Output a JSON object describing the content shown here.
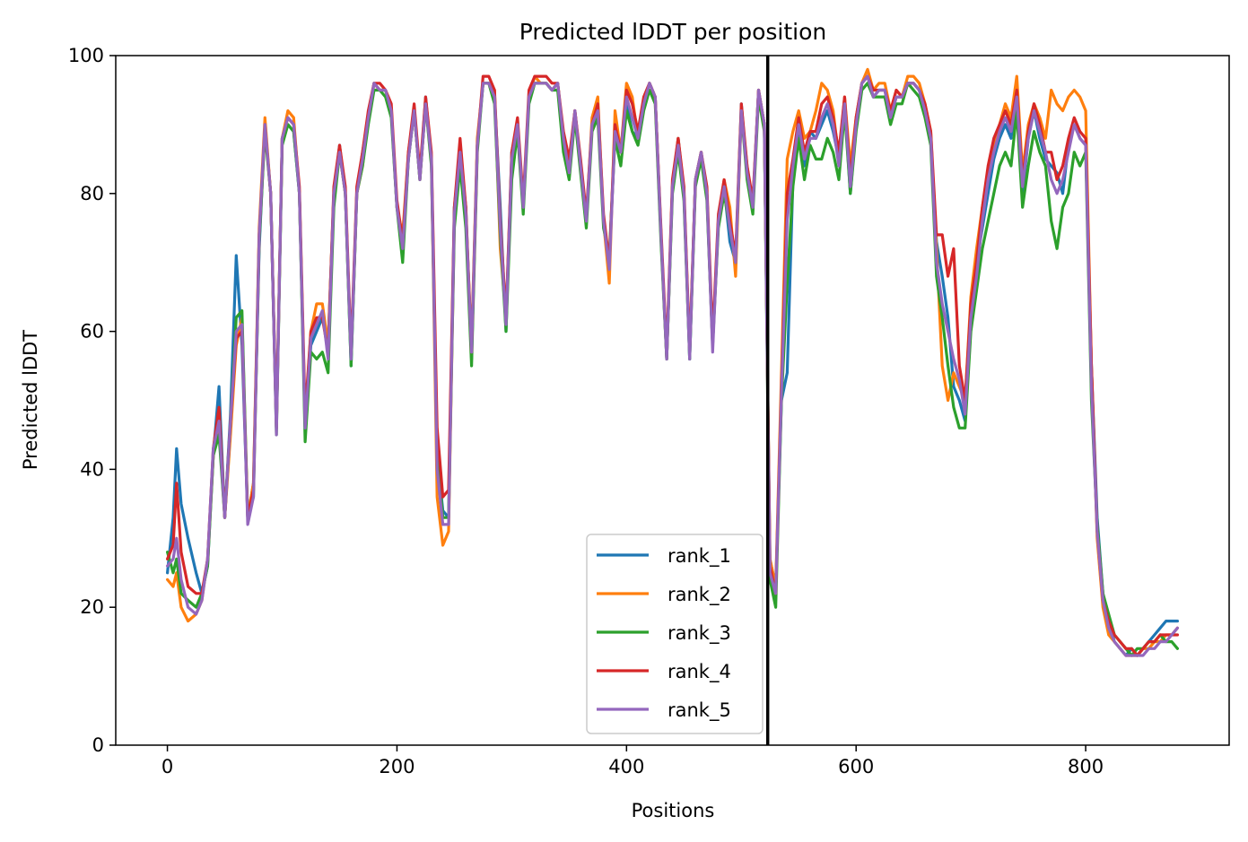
{
  "chart_data": {
    "type": "line",
    "title": "Predicted lDDT per position",
    "xlabel": "Positions",
    "ylabel": "Predicted lDDT",
    "xlim": [
      -45,
      925
    ],
    "ylim": [
      0,
      100
    ],
    "x_ticks": [
      0,
      200,
      400,
      600,
      800
    ],
    "y_ticks": [
      0,
      20,
      40,
      60,
      80,
      100
    ],
    "grid": false,
    "legend_position": "lower center",
    "vline": {
      "x": 523,
      "color": "#000000"
    },
    "x": [
      0,
      5,
      8,
      12,
      18,
      25,
      30,
      35,
      40,
      45,
      50,
      55,
      60,
      65,
      70,
      75,
      80,
      85,
      90,
      95,
      100,
      105,
      110,
      115,
      120,
      125,
      130,
      135,
      140,
      145,
      150,
      155,
      160,
      165,
      170,
      175,
      180,
      185,
      190,
      195,
      200,
      205,
      210,
      215,
      220,
      225,
      230,
      235,
      240,
      245,
      250,
      255,
      260,
      265,
      270,
      275,
      280,
      285,
      290,
      295,
      300,
      305,
      310,
      315,
      320,
      325,
      330,
      335,
      340,
      345,
      350,
      355,
      360,
      365,
      370,
      375,
      380,
      385,
      390,
      395,
      400,
      405,
      410,
      415,
      420,
      425,
      430,
      435,
      440,
      445,
      450,
      455,
      460,
      465,
      470,
      475,
      480,
      485,
      490,
      495,
      500,
      505,
      510,
      515,
      520,
      525,
      530,
      535,
      540,
      545,
      550,
      555,
      560,
      565,
      570,
      575,
      580,
      585,
      590,
      595,
      600,
      605,
      610,
      615,
      620,
      625,
      630,
      635,
      640,
      645,
      650,
      655,
      660,
      665,
      670,
      675,
      680,
      685,
      690,
      695,
      700,
      705,
      710,
      715,
      720,
      725,
      730,
      735,
      740,
      745,
      750,
      755,
      760,
      765,
      770,
      775,
      780,
      785,
      790,
      795,
      800,
      805,
      810,
      815,
      820,
      825,
      830,
      835,
      840,
      845,
      850,
      855,
      860,
      865,
      870,
      875,
      880
    ],
    "series": [
      {
        "name": "rank_1",
        "color": "#1f77b4",
        "values": [
          25,
          33,
          43,
          35,
          30,
          25,
          22,
          26,
          42,
          52,
          33,
          48,
          71,
          58,
          33,
          38,
          72,
          90,
          80,
          46,
          88,
          90,
          89,
          80,
          46,
          58,
          60,
          62,
          58,
          80,
          87,
          80,
          55,
          80,
          86,
          91,
          96,
          95,
          95,
          92,
          78,
          72,
          85,
          92,
          82,
          94,
          85,
          42,
          34,
          33,
          78,
          86,
          78,
          56,
          87,
          96,
          96,
          94,
          78,
          60,
          86,
          90,
          78,
          94,
          96,
          96,
          96,
          95,
          96,
          88,
          83,
          92,
          84,
          76,
          90,
          92,
          76,
          70,
          89,
          86,
          93,
          89,
          88,
          93,
          96,
          94,
          74,
          56,
          81,
          88,
          80,
          56,
          82,
          86,
          80,
          58,
          76,
          81,
          73,
          70,
          93,
          83,
          78,
          95,
          90,
          27,
          23,
          50,
          54,
          82,
          90,
          84,
          89,
          88,
          90,
          92,
          89,
          85,
          93,
          80,
          90,
          96,
          97,
          94,
          95,
          95,
          91,
          94,
          94,
          96,
          96,
          95,
          92,
          88,
          73,
          68,
          62,
          52,
          50,
          47,
          62,
          70,
          75,
          80,
          85,
          88,
          90,
          88,
          94,
          80,
          88,
          92,
          88,
          85,
          84,
          83,
          80,
          87,
          90,
          88,
          87,
          55,
          33,
          22,
          18,
          15,
          14,
          13,
          14,
          13,
          14,
          15,
          16,
          17,
          18,
          18,
          18
        ]
      },
      {
        "name": "rank_2",
        "color": "#ff7f0e",
        "values": [
          24,
          23,
          25,
          20,
          18,
          19,
          21,
          27,
          42,
          46,
          33,
          45,
          58,
          62,
          33,
          38,
          75,
          91,
          80,
          46,
          88,
          92,
          91,
          80,
          47,
          60,
          64,
          64,
          58,
          80,
          86,
          80,
          56,
          80,
          84,
          91,
          96,
          95,
          95,
          92,
          78,
          74,
          86,
          92,
          82,
          93,
          85,
          36,
          29,
          31,
          76,
          86,
          77,
          58,
          88,
          96,
          96,
          95,
          72,
          62,
          85,
          90,
          78,
          94,
          97,
          96,
          96,
          95,
          96,
          88,
          84,
          92,
          84,
          76,
          91,
          94,
          76,
          67,
          92,
          86,
          96,
          94,
          88,
          93,
          96,
          94,
          74,
          56,
          81,
          88,
          80,
          57,
          82,
          86,
          80,
          58,
          76,
          82,
          78,
          68,
          92,
          84,
          78,
          95,
          90,
          27,
          23,
          54,
          85,
          89,
          92,
          88,
          89,
          92,
          96,
          95,
          92,
          85,
          94,
          84,
          91,
          96,
          98,
          95,
          96,
          96,
          92,
          95,
          94,
          97,
          97,
          96,
          93,
          89,
          72,
          55,
          50,
          54,
          52,
          50,
          65,
          72,
          78,
          83,
          87,
          90,
          93,
          91,
          97,
          83,
          90,
          93,
          91,
          88,
          95,
          93,
          92,
          94,
          95,
          94,
          92,
          55,
          30,
          20,
          16,
          15,
          14,
          13,
          13,
          13,
          14,
          14,
          15,
          15,
          16,
          16,
          17
        ]
      },
      {
        "name": "rank_3",
        "color": "#2ca02c",
        "values": [
          28,
          25,
          27,
          22,
          21,
          20,
          22,
          26,
          42,
          45,
          33,
          47,
          62,
          63,
          33,
          36,
          73,
          89,
          80,
          45,
          87,
          90,
          89,
          80,
          44,
          57,
          56,
          57,
          54,
          78,
          86,
          80,
          55,
          80,
          84,
          90,
          95,
          95,
          94,
          91,
          78,
          70,
          85,
          92,
          82,
          93,
          84,
          42,
          33,
          33,
          75,
          84,
          75,
          55,
          86,
          96,
          96,
          93,
          74,
          60,
          82,
          89,
          77,
          93,
          96,
          96,
          96,
          95,
          95,
          86,
          82,
          91,
          83,
          75,
          89,
          91,
          75,
          71,
          88,
          84,
          92,
          89,
          87,
          92,
          95,
          93,
          73,
          56,
          80,
          86,
          79,
          56,
          81,
          85,
          79,
          58,
          75,
          80,
          75,
          70,
          92,
          82,
          77,
          94,
          89,
          24,
          20,
          50,
          67,
          81,
          88,
          82,
          87,
          85,
          85,
          88,
          86,
          82,
          92,
          80,
          89,
          95,
          96,
          94,
          94,
          94,
          90,
          93,
          93,
          96,
          95,
          94,
          91,
          87,
          68,
          62,
          55,
          49,
          46,
          46,
          60,
          66,
          72,
          76,
          80,
          84,
          86,
          84,
          92,
          78,
          84,
          89,
          86,
          84,
          76,
          72,
          78,
          80,
          86,
          84,
          86,
          50,
          32,
          22,
          19,
          16,
          15,
          14,
          13,
          14,
          14,
          15,
          15,
          16,
          15,
          15,
          14
        ]
      },
      {
        "name": "rank_4",
        "color": "#d62728",
        "values": [
          27,
          29,
          38,
          28,
          23,
          22,
          22,
          27,
          43,
          49,
          33,
          47,
          59,
          60,
          33,
          37,
          74,
          90,
          80,
          46,
          88,
          91,
          90,
          81,
          48,
          60,
          62,
          62,
          57,
          81,
          87,
          81,
          57,
          81,
          86,
          92,
          96,
          96,
          95,
          93,
          79,
          73,
          86,
          93,
          83,
          94,
          86,
          46,
          36,
          37,
          78,
          88,
          78,
          57,
          87,
          97,
          97,
          95,
          76,
          62,
          86,
          91,
          79,
          95,
          97,
          97,
          97,
          96,
          96,
          89,
          85,
          92,
          85,
          77,
          90,
          93,
          77,
          70,
          90,
          86,
          95,
          93,
          89,
          94,
          96,
          94,
          75,
          57,
          82,
          88,
          81,
          57,
          82,
          86,
          81,
          59,
          77,
          82,
          76,
          71,
          93,
          84,
          79,
          95,
          90,
          26,
          22,
          52,
          80,
          85,
          91,
          86,
          89,
          89,
          93,
          94,
          91,
          86,
          94,
          82,
          91,
          96,
          97,
          95,
          95,
          95,
          92,
          95,
          94,
          96,
          96,
          95,
          93,
          89,
          74,
          74,
          68,
          72,
          55,
          50,
          64,
          70,
          78,
          84,
          88,
          90,
          92,
          90,
          95,
          82,
          89,
          93,
          90,
          86,
          86,
          82,
          84,
          88,
          91,
          89,
          88,
          55,
          31,
          21,
          18,
          16,
          15,
          14,
          14,
          13,
          14,
          15,
          15,
          16,
          16,
          16,
          16
        ]
      },
      {
        "name": "rank_5",
        "color": "#9467bd",
        "values": [
          26,
          27,
          30,
          24,
          20,
          19,
          21,
          27,
          43,
          47,
          33,
          47,
          60,
          61,
          32,
          36,
          74,
          90,
          80,
          45,
          88,
          91,
          90,
          80,
          46,
          59,
          61,
          63,
          56,
          80,
          86,
          80,
          56,
          80,
          85,
          91,
          96,
          95,
          95,
          92,
          78,
          72,
          85,
          92,
          82,
          93,
          85,
          40,
          32,
          32,
          77,
          86,
          77,
          57,
          87,
          96,
          96,
          94,
          75,
          61,
          85,
          90,
          78,
          94,
          96,
          96,
          96,
          95,
          96,
          88,
          83,
          92,
          84,
          76,
          90,
          92,
          76,
          69,
          89,
          86,
          94,
          91,
          88,
          93,
          96,
          94,
          74,
          56,
          81,
          87,
          80,
          56,
          82,
          86,
          80,
          57,
          76,
          81,
          75,
          70,
          92,
          83,
          78,
          95,
          90,
          25,
          22,
          51,
          76,
          84,
          90,
          85,
          88,
          88,
          91,
          93,
          90,
          84,
          93,
          81,
          90,
          96,
          97,
          94,
          95,
          95,
          91,
          94,
          94,
          96,
          96,
          95,
          92,
          88,
          70,
          64,
          60,
          56,
          53,
          48,
          62,
          68,
          76,
          82,
          86,
          89,
          91,
          89,
          94,
          81,
          88,
          92,
          89,
          86,
          82,
          80,
          82,
          86,
          90,
          88,
          87,
          52,
          31,
          21,
          17,
          15,
          14,
          13,
          13,
          13,
          13,
          14,
          14,
          15,
          15,
          16,
          17
        ]
      }
    ]
  }
}
